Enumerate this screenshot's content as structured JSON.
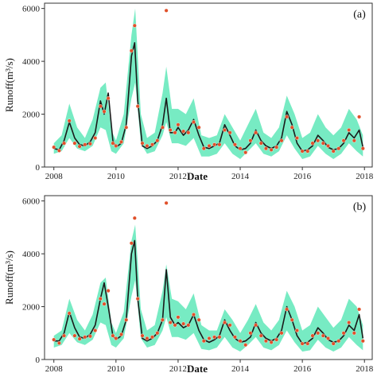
{
  "chart_data": [
    {
      "type": "line",
      "panel_label": "(a)",
      "xlabel": "Date",
      "ylabel": "Runoff(m³/s)",
      "xlim": [
        2007.7,
        2018.25
      ],
      "ylim": [
        0,
        6200
      ],
      "xticks": [
        2008,
        2010,
        2012,
        2014,
        2016,
        2018
      ],
      "xtick_labels": [
        "2008",
        "2010",
        "2012",
        "2014",
        "2016",
        "2018"
      ],
      "yticks": [
        0,
        2000,
        4000,
        6000
      ],
      "ytick_labels": [
        "0",
        "2000",
        "4000",
        "6000"
      ],
      "colors": {
        "band": "#5fe8b8",
        "simulated": "#1a1a1a",
        "observed": "#e0502a"
      },
      "series": [
        {
          "kind": "band",
          "x": [
            2008.0,
            2008.25,
            2008.5,
            2008.75,
            2009.0,
            2009.25,
            2009.5,
            2009.67,
            2009.85,
            2010.0,
            2010.25,
            2010.5,
            2010.62,
            2010.8,
            2011.0,
            2011.25,
            2011.5,
            2011.62,
            2011.8,
            2012.0,
            2012.25,
            2012.5,
            2012.75,
            2013.0,
            2013.25,
            2013.5,
            2013.75,
            2014.0,
            2014.25,
            2014.5,
            2014.75,
            2015.0,
            2015.25,
            2015.5,
            2015.75,
            2016.0,
            2016.25,
            2016.5,
            2016.75,
            2017.0,
            2017.25,
            2017.5,
            2017.75,
            2017.95
          ],
          "upper": [
            900,
            1200,
            2400,
            1500,
            1100,
            1800,
            3000,
            3200,
            1400,
            1000,
            2000,
            5000,
            6000,
            2000,
            1100,
            1300,
            2800,
            3800,
            2200,
            2200,
            2000,
            2600,
            1200,
            1100,
            1200,
            2000,
            1500,
            1000,
            1600,
            2200,
            1300,
            1100,
            1500,
            2700,
            2000,
            1100,
            1300,
            2000,
            1500,
            1200,
            1500,
            2200,
            1800,
            1200
          ],
          "lower": [
            500,
            600,
            1100,
            700,
            600,
            800,
            1500,
            1400,
            600,
            500,
            900,
            2600,
            3200,
            900,
            500,
            600,
            1200,
            1700,
            900,
            900,
            800,
            1100,
            400,
            400,
            500,
            900,
            500,
            300,
            600,
            900,
            500,
            400,
            600,
            1200,
            700,
            300,
            400,
            800,
            500,
            300,
            500,
            900,
            600,
            400
          ]
        },
        {
          "kind": "line",
          "x": [
            2008.0,
            2008.17,
            2008.33,
            2008.5,
            2008.67,
            2008.83,
            2009.0,
            2009.17,
            2009.33,
            2009.5,
            2009.62,
            2009.75,
            2009.9,
            2010.0,
            2010.17,
            2010.33,
            2010.5,
            2010.6,
            2010.7,
            2010.85,
            2011.0,
            2011.17,
            2011.33,
            2011.5,
            2011.62,
            2011.75,
            2011.9,
            2012.0,
            2012.17,
            2012.33,
            2012.5,
            2012.67,
            2012.83,
            2013.0,
            2013.17,
            2013.33,
            2013.5,
            2013.67,
            2013.83,
            2014.0,
            2014.17,
            2014.33,
            2014.5,
            2014.67,
            2014.83,
            2015.0,
            2015.17,
            2015.33,
            2015.5,
            2015.67,
            2015.83,
            2016.0,
            2016.17,
            2016.33,
            2016.5,
            2016.67,
            2016.83,
            2017.0,
            2017.17,
            2017.33,
            2017.5,
            2017.67,
            2017.83,
            2017.95
          ],
          "y": [
            700,
            650,
            1000,
            1700,
            1100,
            850,
            800,
            950,
            1300,
            2500,
            2000,
            2800,
            1000,
            750,
            900,
            1600,
            4200,
            4700,
            2500,
            800,
            700,
            800,
            1000,
            1600,
            2600,
            1300,
            1300,
            1500,
            1200,
            1400,
            1800,
            1200,
            750,
            700,
            800,
            900,
            1600,
            1200,
            800,
            650,
            700,
            900,
            1400,
            1000,
            800,
            700,
            800,
            1100,
            2100,
            1600,
            900,
            600,
            650,
            800,
            1200,
            1000,
            750,
            650,
            700,
            900,
            1300,
            1100,
            1400,
            750
          ]
        },
        {
          "kind": "scatter",
          "x": [
            2008.0,
            2008.17,
            2008.33,
            2008.5,
            2008.67,
            2008.83,
            2009.0,
            2009.17,
            2009.33,
            2009.5,
            2009.62,
            2009.75,
            2009.9,
            2010.0,
            2010.17,
            2010.33,
            2010.5,
            2010.6,
            2010.7,
            2010.85,
            2011.0,
            2011.17,
            2011.33,
            2011.5,
            2011.62,
            2011.75,
            2011.9,
            2012.0,
            2012.17,
            2012.33,
            2012.5,
            2012.67,
            2012.83,
            2013.0,
            2013.17,
            2013.33,
            2013.5,
            2013.67,
            2013.83,
            2014.0,
            2014.17,
            2014.33,
            2014.5,
            2014.67,
            2014.83,
            2015.0,
            2015.17,
            2015.33,
            2015.5,
            2015.67,
            2015.83,
            2016.0,
            2016.17,
            2016.33,
            2016.5,
            2016.67,
            2016.83,
            2017.0,
            2017.17,
            2017.33,
            2017.5,
            2017.67,
            2017.83,
            2017.95
          ],
          "y": [
            750,
            620,
            900,
            1750,
            900,
            780,
            850,
            880,
            1100,
            2300,
            2100,
            2600,
            900,
            800,
            950,
            1500,
            4400,
            5350,
            2300,
            900,
            800,
            850,
            1000,
            1500,
            5920,
            1400,
            1300,
            1600,
            1350,
            1300,
            1700,
            1500,
            700,
            800,
            850,
            850,
            1400,
            1300,
            850,
            700,
            550,
            1000,
            1300,
            900,
            700,
            650,
            750,
            1000,
            1900,
            1500,
            1100,
            600,
            600,
            900,
            1000,
            900,
            800,
            600,
            700,
            1000,
            1400,
            1000,
            1900,
            700
          ]
        }
      ]
    },
    {
      "type": "line",
      "panel_label": "(b)",
      "xlabel": "Date",
      "ylabel": "Runoff(m³/s)",
      "xlim": [
        2007.7,
        2018.25
      ],
      "ylim": [
        0,
        6200
      ],
      "xticks": [
        2008,
        2010,
        2012,
        2014,
        2016,
        2018
      ],
      "xtick_labels": [
        "2008",
        "2010",
        "2012",
        "2014",
        "2016",
        "2018"
      ],
      "yticks": [
        0,
        2000,
        4000,
        6000
      ],
      "ytick_labels": [
        "0",
        "2000",
        "4000",
        "6000"
      ],
      "colors": {
        "band": "#5fe8b8",
        "simulated": "#1a1a1a",
        "observed": "#e0502a"
      },
      "series": [
        {
          "kind": "band",
          "x": [
            2008.0,
            2008.25,
            2008.5,
            2008.75,
            2009.0,
            2009.25,
            2009.5,
            2009.67,
            2009.85,
            2010.0,
            2010.25,
            2010.5,
            2010.62,
            2010.8,
            2011.0,
            2011.25,
            2011.5,
            2011.62,
            2011.8,
            2012.0,
            2012.25,
            2012.5,
            2012.75,
            2013.0,
            2013.25,
            2013.5,
            2013.75,
            2014.0,
            2014.25,
            2014.5,
            2014.75,
            2015.0,
            2015.25,
            2015.5,
            2015.75,
            2016.0,
            2016.25,
            2016.5,
            2016.75,
            2017.0,
            2017.25,
            2017.5,
            2017.75,
            2017.95
          ],
          "upper": [
            900,
            1100,
            2300,
            1500,
            1100,
            1700,
            2900,
            3100,
            1400,
            1000,
            1800,
            4500,
            5100,
            1900,
            1100,
            1300,
            2600,
            3600,
            2300,
            2200,
            1900,
            2500,
            1300,
            1100,
            1100,
            1900,
            1500,
            1000,
            1500,
            2100,
            1400,
            1100,
            1500,
            2600,
            2000,
            1100,
            1300,
            2000,
            1600,
            1200,
            1500,
            2300,
            2000,
            1300
          ],
          "lower": [
            450,
            550,
            1000,
            650,
            550,
            750,
            1400,
            1300,
            550,
            450,
            800,
            2400,
            3000,
            800,
            450,
            550,
            1100,
            1600,
            850,
            850,
            750,
            1000,
            400,
            350,
            450,
            850,
            450,
            300,
            550,
            850,
            450,
            350,
            550,
            1100,
            650,
            300,
            350,
            750,
            450,
            300,
            450,
            850,
            550,
            350
          ]
        },
        {
          "kind": "line",
          "x": [
            2008.0,
            2008.17,
            2008.33,
            2008.5,
            2008.67,
            2008.83,
            2009.0,
            2009.17,
            2009.33,
            2009.5,
            2009.62,
            2009.75,
            2009.9,
            2010.0,
            2010.17,
            2010.33,
            2010.5,
            2010.6,
            2010.7,
            2010.85,
            2011.0,
            2011.17,
            2011.33,
            2011.5,
            2011.62,
            2011.75,
            2011.9,
            2012.0,
            2012.17,
            2012.33,
            2012.5,
            2012.67,
            2012.83,
            2013.0,
            2013.17,
            2013.33,
            2013.5,
            2013.67,
            2013.83,
            2014.0,
            2014.17,
            2014.33,
            2014.5,
            2014.67,
            2014.83,
            2015.0,
            2015.17,
            2015.33,
            2015.5,
            2015.67,
            2015.83,
            2016.0,
            2016.17,
            2016.33,
            2016.5,
            2016.67,
            2016.83,
            2017.0,
            2017.17,
            2017.33,
            2017.5,
            2017.67,
            2017.83,
            2017.95
          ],
          "y": [
            700,
            700,
            1000,
            1800,
            1200,
            850,
            800,
            950,
            1300,
            2300,
            2900,
            2000,
            900,
            750,
            900,
            1500,
            4000,
            4500,
            2300,
            800,
            700,
            800,
            1000,
            1500,
            3400,
            1600,
            1300,
            1400,
            1200,
            1300,
            1700,
            1100,
            750,
            650,
            750,
            900,
            1500,
            1100,
            800,
            650,
            700,
            850,
            1400,
            1000,
            800,
            700,
            800,
            1100,
            2000,
            1500,
            900,
            600,
            650,
            800,
            1200,
            1000,
            750,
            650,
            700,
            900,
            1300,
            1100,
            1700,
            800
          ]
        },
        {
          "kind": "scatter",
          "x": [
            2008.0,
            2008.17,
            2008.33,
            2008.5,
            2008.67,
            2008.83,
            2009.0,
            2009.17,
            2009.33,
            2009.5,
            2009.62,
            2009.75,
            2009.9,
            2010.0,
            2010.17,
            2010.33,
            2010.5,
            2010.6,
            2010.7,
            2010.85,
            2011.0,
            2011.17,
            2011.33,
            2011.5,
            2011.62,
            2011.75,
            2011.9,
            2012.0,
            2012.17,
            2012.33,
            2012.5,
            2012.67,
            2012.83,
            2013.0,
            2013.17,
            2013.33,
            2013.5,
            2013.67,
            2013.83,
            2014.0,
            2014.17,
            2014.33,
            2014.5,
            2014.67,
            2014.83,
            2015.0,
            2015.17,
            2015.33,
            2015.5,
            2015.67,
            2015.83,
            2016.0,
            2016.17,
            2016.33,
            2016.5,
            2016.67,
            2016.83,
            2017.0,
            2017.17,
            2017.33,
            2017.5,
            2017.67,
            2017.83,
            2017.95
          ],
          "y": [
            750,
            620,
            900,
            1750,
            900,
            780,
            850,
            880,
            1100,
            2300,
            2100,
            2600,
            900,
            800,
            950,
            1500,
            4400,
            5350,
            2300,
            900,
            800,
            850,
            1000,
            1500,
            5920,
            1400,
            1300,
            1600,
            1350,
            1300,
            1700,
            1500,
            700,
            800,
            850,
            850,
            1400,
            1300,
            850,
            700,
            550,
            1000,
            1300,
            900,
            700,
            650,
            750,
            1000,
            1900,
            1500,
            1100,
            600,
            600,
            900,
            1000,
            900,
            800,
            600,
            700,
            1000,
            1400,
            1000,
            1900,
            700
          ]
        }
      ]
    }
  ]
}
